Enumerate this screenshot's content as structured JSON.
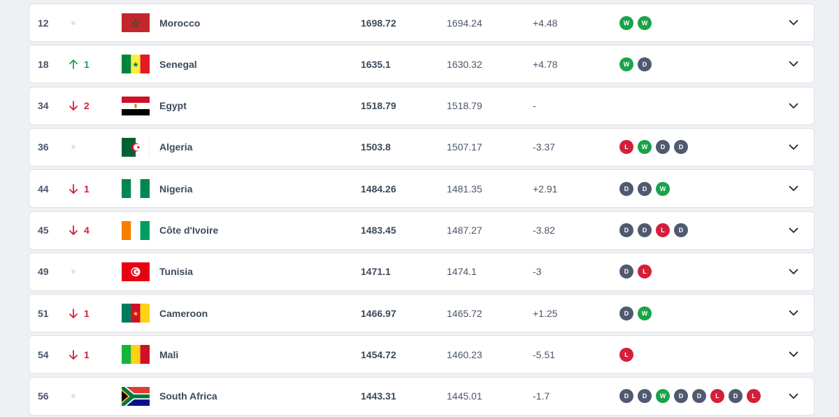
{
  "rows": [
    {
      "rank": "12",
      "movement": "same",
      "movement_value": "",
      "team": "Morocco",
      "flag": "morocco-flag-icon",
      "points": "1698.72",
      "previous": "1694.24",
      "diff": "+4.48",
      "form": [
        "W",
        "W"
      ]
    },
    {
      "rank": "18",
      "movement": "up",
      "movement_value": "1",
      "team": "Senegal",
      "flag": "senegal-flag-icon",
      "points": "1635.1",
      "previous": "1630.32",
      "diff": "+4.78",
      "form": [
        "W",
        "D"
      ]
    },
    {
      "rank": "34",
      "movement": "down",
      "movement_value": "2",
      "team": "Egypt",
      "flag": "egypt-flag-icon",
      "points": "1518.79",
      "previous": "1518.79",
      "diff": "-",
      "form": []
    },
    {
      "rank": "36",
      "movement": "same",
      "movement_value": "",
      "team": "Algeria",
      "flag": "algeria-flag-icon",
      "points": "1503.8",
      "previous": "1507.17",
      "diff": "-3.37",
      "form": [
        "L",
        "W",
        "D",
        "D"
      ]
    },
    {
      "rank": "44",
      "movement": "down",
      "movement_value": "1",
      "team": "Nigeria",
      "flag": "nigeria-flag-icon",
      "points": "1484.26",
      "previous": "1481.35",
      "diff": "+2.91",
      "form": [
        "D",
        "D",
        "W"
      ]
    },
    {
      "rank": "45",
      "movement": "down",
      "movement_value": "4",
      "team": "Côte d'Ivoire",
      "flag": "cote-divoire-flag-icon",
      "points": "1483.45",
      "previous": "1487.27",
      "diff": "-3.82",
      "form": [
        "D",
        "D",
        "L",
        "D"
      ]
    },
    {
      "rank": "49",
      "movement": "same",
      "movement_value": "",
      "team": "Tunisia",
      "flag": "tunisia-flag-icon",
      "points": "1471.1",
      "previous": "1474.1",
      "diff": "-3",
      "form": [
        "D",
        "L"
      ]
    },
    {
      "rank": "51",
      "movement": "down",
      "movement_value": "1",
      "team": "Cameroon",
      "flag": "cameroon-flag-icon",
      "points": "1466.97",
      "previous": "1465.72",
      "diff": "+1.25",
      "form": [
        "D",
        "W"
      ]
    },
    {
      "rank": "54",
      "movement": "down",
      "movement_value": "1",
      "team": "Mali",
      "flag": "mali-flag-icon",
      "points": "1454.72",
      "previous": "1460.23",
      "diff": "-5.51",
      "form": [
        "L"
      ]
    },
    {
      "rank": "56",
      "movement": "same",
      "movement_value": "",
      "team": "South Africa",
      "flag": "south-africa-flag-icon",
      "points": "1443.31",
      "previous": "1445.01",
      "diff": "-1.7",
      "form": [
        "D",
        "D",
        "W",
        "D",
        "D",
        "L",
        "D",
        "L"
      ]
    }
  ],
  "colors": {
    "win": "#1aa34a",
    "draw": "#4f5a6e",
    "loss": "#d41f3a",
    "up": "#1aa34a",
    "down": "#d41f3a"
  }
}
